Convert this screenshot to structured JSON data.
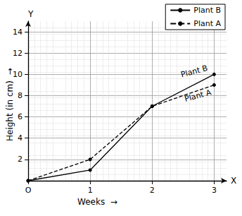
{
  "chart_data": {
    "type": "line",
    "x_label": "Weeks",
    "y_label": "Height (in cm)",
    "x_axis_name": "X",
    "y_axis_name": "Y",
    "xlim": [
      0,
      3.2
    ],
    "xticks": [
      {
        "value": 0,
        "label": "O"
      },
      1,
      2,
      3
    ],
    "ylim": [
      0,
      15
    ],
    "yticks": [
      2,
      4,
      6,
      8,
      10,
      12,
      14
    ],
    "grid": true,
    "legend": "upper right",
    "series": [
      {
        "name": "Plant B",
        "color": "#000000",
        "line_style": "solid",
        "marker": "circle",
        "x": [
          0,
          1,
          2,
          3
        ],
        "values": [
          0,
          1,
          7,
          10
        ]
      },
      {
        "name": "Plant A",
        "color": "#000000",
        "line_style": "dashed",
        "marker": "circle",
        "x": [
          0,
          1,
          2,
          3
        ],
        "values": [
          0,
          2,
          7,
          9
        ]
      }
    ],
    "annotations": [
      {
        "text": "Plant B",
        "x": 3,
        "y": 10
      },
      {
        "text": "Plant A",
        "x": 3,
        "y": 9
      }
    ]
  }
}
